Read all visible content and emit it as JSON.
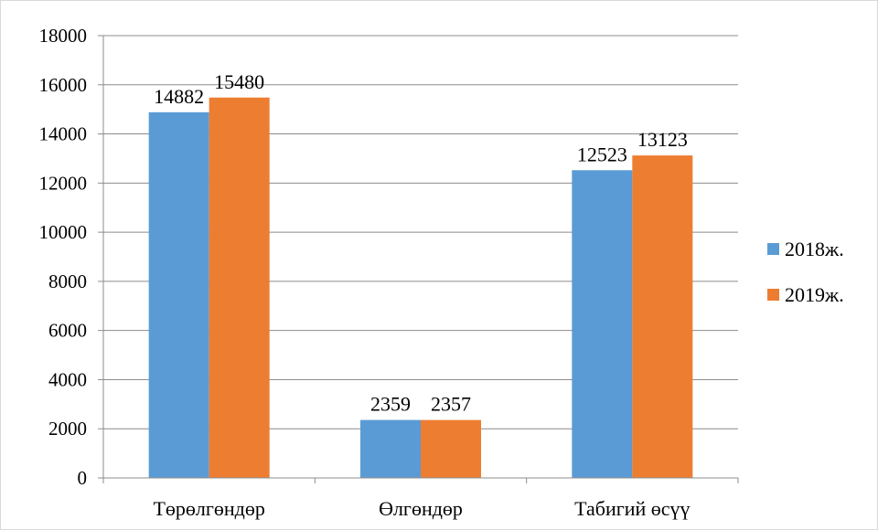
{
  "chart_data": {
    "type": "bar",
    "title": "",
    "xlabel": "",
    "ylabel": "",
    "categories": [
      "Төрөлгөндөр",
      "Өлгөндөр",
      "Табигий өсүү"
    ],
    "series": [
      {
        "name": "2018ж.",
        "color": "#5b9bd5",
        "values": [
          14882,
          2359,
          12523
        ]
      },
      {
        "name": "2019ж.",
        "color": "#ed7d31",
        "values": [
          15480,
          2357,
          13123
        ]
      }
    ],
    "ylim": [
      0,
      18000
    ],
    "yticks": [
      0,
      2000,
      4000,
      6000,
      8000,
      10000,
      12000,
      14000,
      16000,
      18000
    ],
    "grid": true,
    "legend_position": "right"
  }
}
